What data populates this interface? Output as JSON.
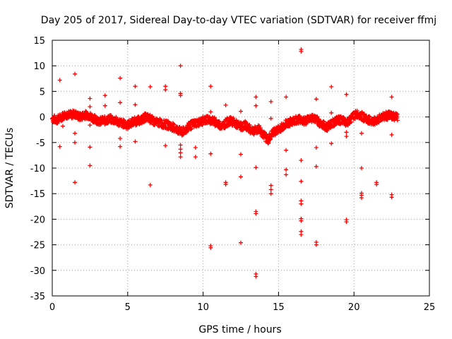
{
  "chart_data": {
    "type": "scatter",
    "title": "Day 205 of 2017, Sidereal Day-to-day VTEC variation (SDTVAR) for receiver ffmj",
    "xlabel": "GPS time / hours",
    "ylabel": "SDTVAR / TECUs",
    "xlim": [
      0,
      25
    ],
    "ylim": [
      -35,
      15
    ],
    "xticks": [
      "0",
      "5",
      "10",
      "15",
      "20",
      "25"
    ],
    "yticks": [
      "15",
      "10",
      "5",
      "0",
      "-5",
      "-10",
      "-15",
      "-20",
      "-25",
      "-30",
      "-35"
    ],
    "grid": true,
    "marker": "+",
    "color": "#ff0000",
    "band": [
      [
        0.0,
        -0.3
      ],
      [
        0.3,
        -0.6
      ],
      [
        0.6,
        0.0
      ],
      [
        0.9,
        0.5
      ],
      [
        1.2,
        0.4
      ],
      [
        1.5,
        0.6
      ],
      [
        1.8,
        0.0
      ],
      [
        2.0,
        0.2
      ],
      [
        2.3,
        0.5
      ],
      [
        2.6,
        0.0
      ],
      [
        2.9,
        -0.6
      ],
      [
        3.2,
        -0.8
      ],
      [
        3.5,
        -0.7
      ],
      [
        3.8,
        -0.4
      ],
      [
        4.1,
        -0.6
      ],
      [
        4.4,
        -1.0
      ],
      [
        4.7,
        -1.3
      ],
      [
        5.0,
        -1.6
      ],
      [
        5.3,
        -1.0
      ],
      [
        5.6,
        -0.8
      ],
      [
        5.9,
        -0.6
      ],
      [
        6.2,
        0.0
      ],
      [
        6.5,
        -0.4
      ],
      [
        6.8,
        -1.0
      ],
      [
        7.1,
        -1.1
      ],
      [
        7.4,
        -1.4
      ],
      [
        7.7,
        -1.6
      ],
      [
        8.0,
        -2.0
      ],
      [
        8.3,
        -2.5
      ],
      [
        8.6,
        -3.0
      ],
      [
        8.9,
        -2.3
      ],
      [
        9.2,
        -1.6
      ],
      [
        9.5,
        -1.2
      ],
      [
        9.8,
        -1.0
      ],
      [
        10.1,
        -0.6
      ],
      [
        10.4,
        -0.5
      ],
      [
        10.7,
        -0.8
      ],
      [
        11.0,
        -1.4
      ],
      [
        11.3,
        -1.7
      ],
      [
        11.6,
        -1.0
      ],
      [
        11.9,
        -0.8
      ],
      [
        12.2,
        -1.4
      ],
      [
        12.5,
        -1.9
      ],
      [
        12.8,
        -1.6
      ],
      [
        13.1,
        -2.4
      ],
      [
        13.4,
        -2.7
      ],
      [
        13.7,
        -2.3
      ],
      [
        14.0,
        -3.5
      ],
      [
        14.3,
        -4.5
      ],
      [
        14.6,
        -3.2
      ],
      [
        14.9,
        -2.6
      ],
      [
        15.2,
        -2.0
      ],
      [
        15.5,
        -1.3
      ],
      [
        15.8,
        -1.0
      ],
      [
        16.1,
        -0.6
      ],
      [
        16.4,
        -0.4
      ],
      [
        16.7,
        -0.9
      ],
      [
        17.0,
        -0.3
      ],
      [
        17.3,
        -0.2
      ],
      [
        17.6,
        -0.8
      ],
      [
        17.9,
        -1.5
      ],
      [
        18.2,
        -2.0
      ],
      [
        18.5,
        -1.3
      ],
      [
        18.8,
        -0.8
      ],
      [
        19.1,
        -0.6
      ],
      [
        19.4,
        -1.0
      ],
      [
        19.7,
        -0.7
      ],
      [
        20.0,
        0.3
      ],
      [
        20.3,
        0.6
      ],
      [
        20.6,
        0.0
      ],
      [
        20.9,
        -0.5
      ],
      [
        21.2,
        -1.0
      ],
      [
        21.5,
        -0.6
      ],
      [
        21.8,
        0.0
      ],
      [
        22.1,
        0.2
      ],
      [
        22.4,
        0.3
      ],
      [
        22.7,
        0.0
      ],
      [
        22.9,
        -0.1
      ]
    ],
    "outliers": [
      [
        0.5,
        7.2
      ],
      [
        0.5,
        -5.8
      ],
      [
        0.7,
        -1.8
      ],
      [
        1.5,
        8.4
      ],
      [
        1.5,
        -3.2
      ],
      [
        1.5,
        -5.0
      ],
      [
        1.5,
        -12.8
      ],
      [
        2.5,
        3.6
      ],
      [
        2.5,
        2.0
      ],
      [
        2.5,
        -1.6
      ],
      [
        2.5,
        -5.9
      ],
      [
        2.5,
        -9.5
      ],
      [
        3.5,
        4.2
      ],
      [
        3.5,
        2.2
      ],
      [
        4.5,
        7.6
      ],
      [
        4.5,
        2.8
      ],
      [
        4.5,
        -4.2
      ],
      [
        4.5,
        -5.8
      ],
      [
        5.5,
        6.0
      ],
      [
        5.5,
        2.4
      ],
      [
        5.5,
        -4.8
      ],
      [
        6.5,
        5.9
      ],
      [
        6.5,
        -13.3
      ],
      [
        7.5,
        6.0
      ],
      [
        7.5,
        5.3
      ],
      [
        7.5,
        -5.6
      ],
      [
        8.5,
        10.0
      ],
      [
        8.5,
        4.6
      ],
      [
        8.5,
        4.2
      ],
      [
        8.5,
        -5.5
      ],
      [
        8.5,
        -6.3
      ],
      [
        8.5,
        -7.0
      ],
      [
        8.5,
        -7.8
      ],
      [
        9.5,
        -6.0
      ],
      [
        9.5,
        -7.8
      ],
      [
        10.5,
        6.0
      ],
      [
        10.5,
        1.0
      ],
      [
        10.5,
        -7.2
      ],
      [
        10.5,
        -25.2
      ],
      [
        10.5,
        -25.6
      ],
      [
        11.5,
        2.3
      ],
      [
        11.5,
        -12.8
      ],
      [
        11.5,
        -13.2
      ],
      [
        12.5,
        1.1
      ],
      [
        12.5,
        -7.3
      ],
      [
        12.5,
        -11.7
      ],
      [
        12.5,
        -24.6
      ],
      [
        13.5,
        3.9
      ],
      [
        13.5,
        2.2
      ],
      [
        13.5,
        -9.9
      ],
      [
        13.5,
        -18.5
      ],
      [
        13.5,
        -18.9
      ],
      [
        13.5,
        -30.7
      ],
      [
        13.5,
        -31.2
      ],
      [
        14.5,
        3.0
      ],
      [
        14.5,
        -0.3
      ],
      [
        14.5,
        -13.4
      ],
      [
        14.5,
        -14.2
      ],
      [
        14.5,
        -15.0
      ],
      [
        15.5,
        3.9
      ],
      [
        15.5,
        -6.5
      ],
      [
        15.5,
        -10.3
      ],
      [
        15.5,
        -11.3
      ],
      [
        16.5,
        13.2
      ],
      [
        16.5,
        12.8
      ],
      [
        16.5,
        -8.5
      ],
      [
        16.5,
        -12.6
      ],
      [
        16.5,
        -16.4
      ],
      [
        16.5,
        -17.0
      ],
      [
        16.5,
        -19.9
      ],
      [
        16.5,
        -20.3
      ],
      [
        16.5,
        -22.4
      ],
      [
        16.5,
        -23.0
      ],
      [
        17.5,
        3.5
      ],
      [
        17.5,
        -6.0
      ],
      [
        17.5,
        -9.7
      ],
      [
        17.5,
        -24.5
      ],
      [
        17.5,
        -25.0
      ],
      [
        18.5,
        5.9
      ],
      [
        18.5,
        0.8
      ],
      [
        18.5,
        -5.2
      ],
      [
        19.5,
        4.4
      ],
      [
        19.5,
        -3.0
      ],
      [
        19.5,
        -3.8
      ],
      [
        19.5,
        -20.1
      ],
      [
        19.5,
        -20.5
      ],
      [
        20.5,
        -3.2
      ],
      [
        20.5,
        -10.0
      ],
      [
        20.5,
        -14.9
      ],
      [
        20.5,
        -15.3
      ],
      [
        20.5,
        -15.8
      ],
      [
        21.5,
        -12.8
      ],
      [
        21.5,
        -13.2
      ],
      [
        22.5,
        3.9
      ],
      [
        22.5,
        -3.5
      ],
      [
        22.5,
        -15.2
      ],
      [
        22.5,
        -15.7
      ]
    ]
  }
}
